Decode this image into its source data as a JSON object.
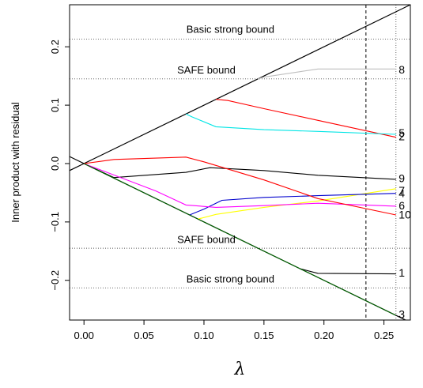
{
  "chart_data": {
    "type": "line",
    "xlabel": "λ",
    "ylabel": "Inner product with residual",
    "xlim": [
      -0.012,
      0.272
    ],
    "ylim": [
      -0.268,
      0.272
    ],
    "xticks": [
      0.0,
      0.05,
      0.1,
      0.15,
      0.2,
      0.25
    ],
    "xtick_labels": [
      "0.00",
      "0.05",
      "0.10",
      "0.15",
      "0.20",
      "0.25"
    ],
    "yticks": [
      -0.2,
      -0.1,
      0.0,
      0.1,
      0.2
    ],
    "ytick_labels": [
      "−0.2",
      "−0.1",
      "0.0",
      "0.1",
      "0.2"
    ],
    "grid": false,
    "legend": "none",
    "bound_lines": [
      {
        "name": "upper envelope",
        "x": [
          -0.012,
          0.272
        ],
        "y": [
          -0.012,
          0.272
        ],
        "color": "#000000",
        "style": "solid"
      },
      {
        "name": "lower envelope",
        "x": [
          -0.012,
          0.272
        ],
        "y": [
          0.012,
          -0.272
        ],
        "color": "#000000",
        "style": "solid"
      }
    ],
    "reference_lines": [
      {
        "y": 0.213,
        "style": "dotted",
        "color": "#555555"
      },
      {
        "y": 0.145,
        "style": "dotted",
        "color": "#555555"
      },
      {
        "y": -0.145,
        "style": "dotted",
        "color": "#555555"
      },
      {
        "y": -0.213,
        "style": "dotted",
        "color": "#555555"
      }
    ],
    "vlines": [
      {
        "x": 0.235,
        "style": "dashed",
        "color": "#000000"
      },
      {
        "x": 0.26,
        "style": "dotted",
        "color": "#555555"
      }
    ],
    "annotations": [
      {
        "text": "Basic strong bound",
        "x": 0.122,
        "y": 0.224
      },
      {
        "text": "SAFE bound",
        "x": 0.102,
        "y": 0.154
      },
      {
        "text": "SAFE bound",
        "x": 0.102,
        "y": -0.136
      },
      {
        "text": "Basic strong bound",
        "x": 0.122,
        "y": -0.204
      }
    ],
    "series": [
      {
        "label": "8",
        "color": "#bebebe",
        "x": [
          0.145,
          0.15,
          0.195,
          0.26
        ],
        "y": [
          0.145,
          0.148,
          0.162,
          0.162
        ]
      },
      {
        "label": "2",
        "color": "#ff0000",
        "x": [
          0.11,
          0.12,
          0.15,
          0.195,
          0.26
        ],
        "y": [
          0.11,
          0.108,
          0.094,
          0.074,
          0.045
        ]
      },
      {
        "label": "5",
        "color": "#00e5e5",
        "x": [
          0.085,
          0.09,
          0.11,
          0.15,
          0.195,
          0.26
        ],
        "y": [
          0.085,
          0.08,
          0.063,
          0.058,
          0.055,
          0.05
        ]
      },
      {
        "label": "9",
        "color": "#000000",
        "x": [
          0.0,
          0.025,
          0.085,
          0.105,
          0.15,
          0.195,
          0.26
        ],
        "y": [
          0.0,
          -0.024,
          -0.015,
          -0.007,
          -0.012,
          -0.02,
          -0.027
        ]
      },
      {
        "label": "7",
        "color": "#ffff00",
        "x": [
          0.095,
          0.11,
          0.15,
          0.195,
          0.26
        ],
        "y": [
          -0.095,
          -0.087,
          -0.075,
          -0.064,
          -0.043
        ]
      },
      {
        "label": "4",
        "color": "#0000cd",
        "x": [
          0.088,
          0.1,
          0.115,
          0.15,
          0.195,
          0.26
        ],
        "y": [
          -0.088,
          -0.078,
          -0.063,
          -0.058,
          -0.055,
          -0.051
        ]
      },
      {
        "label": "6",
        "color": "#ff00ff",
        "x": [
          0.0,
          0.06,
          0.085,
          0.11,
          0.15,
          0.195,
          0.26
        ],
        "y": [
          0.0,
          -0.047,
          -0.071,
          -0.075,
          -0.072,
          -0.068,
          -0.073
        ]
      },
      {
        "label": "10",
        "color": "#ff0000",
        "x": [
          0.0,
          0.025,
          0.085,
          0.1,
          0.15,
          0.195,
          0.26
        ],
        "y": [
          0.0,
          0.007,
          0.011,
          0.003,
          -0.028,
          -0.06,
          -0.088
        ]
      },
      {
        "label": "1",
        "color": "#000000",
        "x": [
          0.18,
          0.195,
          0.26
        ],
        "y": [
          -0.18,
          -0.188,
          -0.189
        ]
      },
      {
        "label": "3",
        "color": "#006400",
        "x": [
          0.0,
          0.26
        ],
        "y": [
          0.0,
          -0.26
        ]
      }
    ],
    "end_labels": [
      {
        "text": "8",
        "y": 0.161
      },
      {
        "text": "5",
        "y": 0.053
      },
      {
        "text": "2",
        "y": 0.047
      },
      {
        "text": "9",
        "y": -0.025
      },
      {
        "text": "7",
        "y": -0.046
      },
      {
        "text": "4",
        "y": -0.051
      },
      {
        "text": "6",
        "y": -0.072
      },
      {
        "text": "10",
        "y": -0.087
      },
      {
        "text": "1",
        "y": -0.187
      },
      {
        "text": "3",
        "y": -0.258
      }
    ]
  }
}
